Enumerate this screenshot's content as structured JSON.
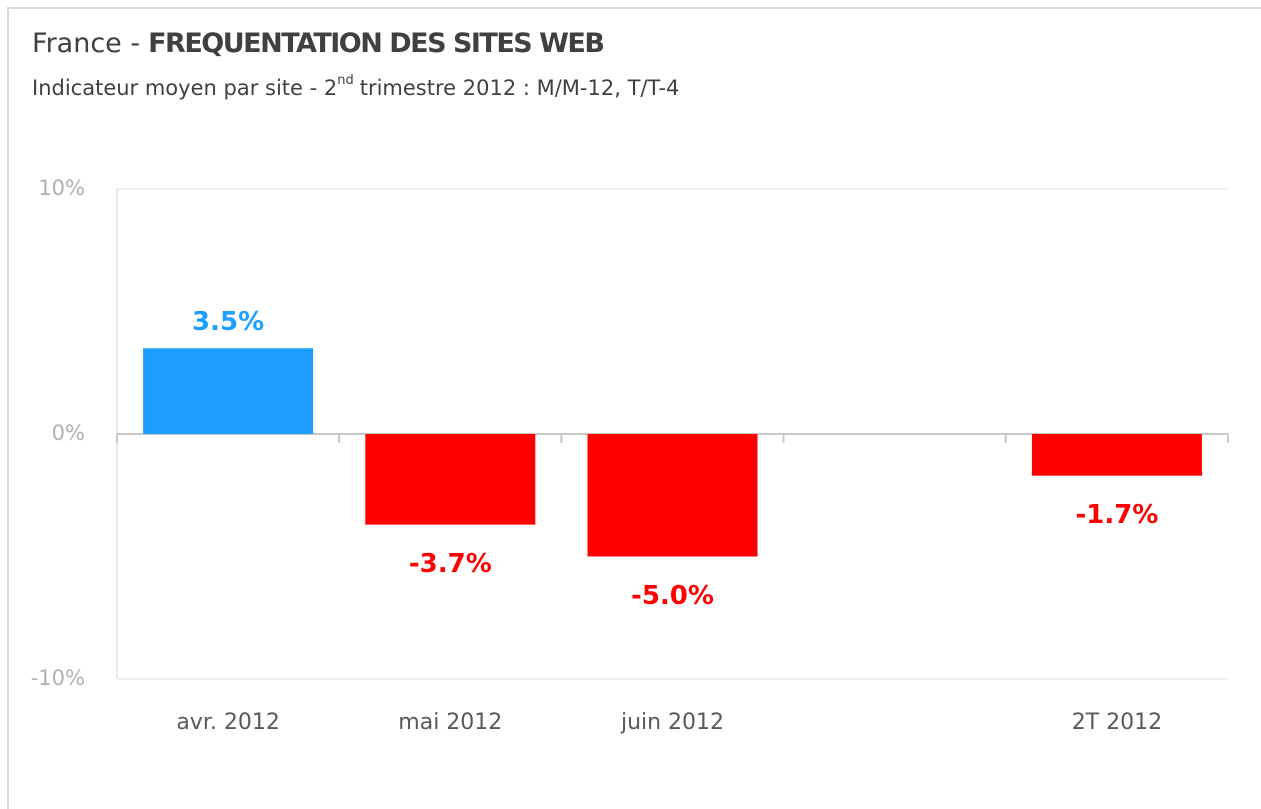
{
  "chart_data": {
    "type": "bar",
    "title": [
      "France -",
      "FREQUENTATION DES SITES WEB"
    ],
    "subtitle": [
      "Indicateur moyen par site - 2",
      "nd",
      "trimestre 2012 : M/M-12, T/T-4"
    ],
    "categories": [
      "avr. 2012",
      "mai 2012",
      "juin 2012",
      null,
      "2T 2012"
    ],
    "values": [
      3.5,
      -3.7,
      -5.0,
      null,
      -1.7
    ],
    "value_labels": [
      "3.5%",
      "-3.7%",
      "-5.0%",
      null,
      "-1.7%"
    ],
    "positive_color": "#1e9fff",
    "negative_color": "#ff0000",
    "ylim": [
      -10,
      10
    ],
    "yticks": [
      {
        "value": -10,
        "label": "-10%"
      },
      {
        "value": 0,
        "label": "0%"
      },
      {
        "value": 10,
        "label": "10%"
      }
    ],
    "grid": true
  }
}
